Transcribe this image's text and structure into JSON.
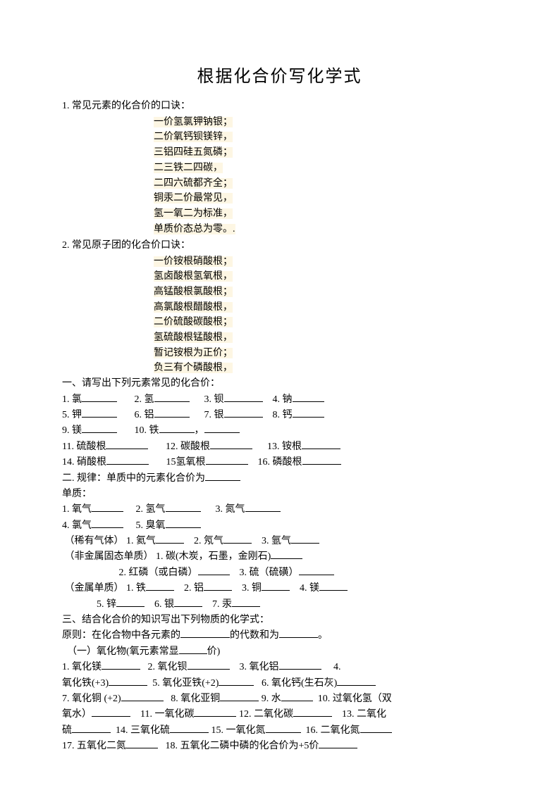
{
  "title": "根据化合价写化学式",
  "section1_head": "1. 常见元素的化合价的口诀：",
  "mnemonic1": [
    "一价氢氯钾钠银；",
    "二价氧钙钡镁锌，",
    "三铝四硅五氮磷；",
    "二三铁二四碳，",
    "二四六硫都齐全；",
    "铜汞二价最常见，",
    "氢一氧二为标准，",
    "单质价态总为零。."
  ],
  "section2_head": "2. 常见原子团的化合价口诀：",
  "mnemonic2": [
    "一价铵根硝酸根；",
    "氢卤酸根氢氧根，",
    "高锰酸根氯酸根；",
    "高氯酸根醋酸根，",
    "二价硫酸碳酸根；",
    "氢硫酸根锰酸根，",
    "暂记铵根为正价；",
    "负三有个磷酸根，"
  ],
  "partA_head": "一、请写出下列元素常见的化合价：",
  "partA": {
    "r1": {
      "a": "1. 氯",
      "b": "2. 氢",
      "c": "3. 钡",
      "d": "4. 钠"
    },
    "r2": {
      "a": "5. 钾",
      "b": "6. 铝",
      "c": "7. 银",
      "d": "8. 钙"
    },
    "r3": {
      "a": "9. 镁",
      "b": "10. 铁",
      "mid": "，"
    },
    "r4": {
      "a": "11. 硫酸根",
      "b": "12. 碳酸根",
      "c": "13. 铵根"
    },
    "r5": {
      "a": "14. 硝酸根",
      "b": "15氢氧根",
      "c": "16. 磷酸根"
    }
  },
  "partB_head": "二. 规律：单质中的元素化合价为",
  "danzhi": "单质：",
  "partB": {
    "r1": {
      "a": "1. 氧气",
      "b": "2. 氢气",
      "c": "3. 氮气"
    },
    "r2": {
      "a": "4. 氯气",
      "b": "5. 臭氧"
    },
    "rare_label": "（稀有气体）",
    "rare": {
      "a": "1. 氦气",
      "b": "2. 氖气",
      "c": "3. 氩气"
    },
    "nonmetal_label": "（非金属固态单质）",
    "nonmetal1": "1. 碳(木炭，石墨，金刚石)",
    "nonmetal2": {
      "a": "2. 红磷（或白磷）",
      "b": "3. 硫（硫磺）"
    },
    "metal_label": "（金属单质）",
    "metal1": {
      "a": "1. 铁",
      "b": "2. 铝",
      "c": "3. 铜",
      "d": "4. 镁"
    },
    "metal2": {
      "a": "5. 锌",
      "b": "6. 银",
      "c": "7. 汞"
    }
  },
  "partC_head": "三、结合化合价的知识写出下列物质的化学式：",
  "principle_a": "原则：在化合物中各元素的",
  "principle_b": "的代数和为",
  "principle_c": "。",
  "oxide_head_a": "（一）氧化物(氧元素常显",
  "oxide_head_b": "价)",
  "oxide": {
    "r1": {
      "a": "1. 氧化镁",
      "b": "2. 氧化钡",
      "c": "3. 氧化铝",
      "d": "4."
    },
    "r2": {
      "a": "氧化铁(+3)",
      "b": "5. 氧化亚铁(+2)",
      "c": "6. 氧化钙(生石灰)"
    },
    "r3": {
      "a": "7. 氧化铜 (+2)",
      "b": "8. 氧化亚铜",
      "c": "9. 水",
      "d": "10. 过氧化氢（双"
    },
    "r4": {
      "a": "氧水）",
      "b": "11. 一氧化碳",
      "c": "12. 二氧化碳",
      "d": "13. 二氧化"
    },
    "r5": {
      "a": "硫",
      "b": "14. 三氧化硫",
      "c": "15. 一氧化氮",
      "d": "16. 二氧化氮"
    },
    "r6": {
      "a": "17. 五氧化二氮",
      "b": "18.  五氧化二磷中磷的化合价为+5价"
    }
  }
}
